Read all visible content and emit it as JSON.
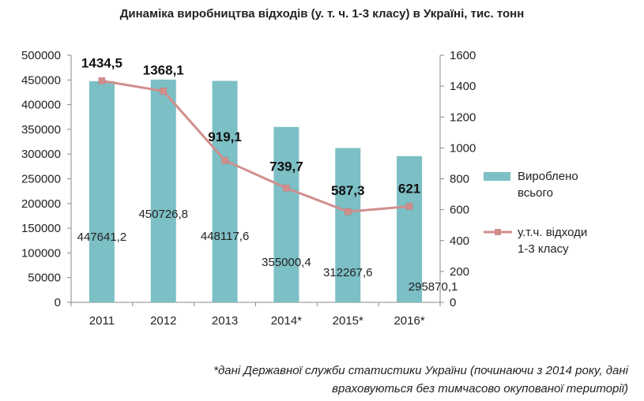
{
  "chart_data": {
    "type": "bar+line",
    "title": "Динаміка виробництва відходів (у. т. ч. 1-3 класу) в Україні, тис. тонн",
    "categories": [
      "2011",
      "2012",
      "2013",
      "2014*",
      "2015*",
      "2016*"
    ],
    "series": [
      {
        "name": "Вироблено всього",
        "type": "bar",
        "axis": "left",
        "color": "#7cbfc5",
        "values": [
          447641.2,
          450726.8,
          448117.6,
          355000.4,
          312267.6,
          295870.1
        ],
        "labels": [
          "447641,2",
          "450726,8",
          "448117,6",
          "355000,4",
          "312267,6",
          "295870,1"
        ]
      },
      {
        "name": "у.т.ч. відходи 1-3 класу",
        "type": "line",
        "axis": "right",
        "color": "#d08f8d",
        "values": [
          1434.5,
          1368.1,
          919.1,
          739.7,
          587.3,
          621
        ],
        "labels": [
          "1434,5",
          "1368,1",
          "919,1",
          "739,7",
          "587,3",
          "621"
        ]
      }
    ],
    "left_axis": {
      "ylim": [
        0,
        500000
      ],
      "ticks": [
        "0",
        "50000",
        "100000",
        "150000",
        "200000",
        "250000",
        "300000",
        "350000",
        "400000",
        "450000",
        "500000"
      ]
    },
    "right_axis": {
      "ylim": [
        0,
        1600
      ],
      "ticks": [
        "0",
        "200",
        "400",
        "600",
        "800",
        "1000",
        "1200",
        "1400",
        "1600"
      ]
    },
    "legend": {
      "position": "right",
      "entries": [
        {
          "line1": "Вироблено",
          "line2": "всього"
        },
        {
          "line1": "у.т.ч. відходи",
          "line2": "1-3 класу"
        }
      ]
    },
    "grid": false
  },
  "footnote": {
    "line1": "*дані Державної служби статистики України (починаючи з 2014 року, дані",
    "line2": "враховуються без тимчасово окупованої території)"
  }
}
